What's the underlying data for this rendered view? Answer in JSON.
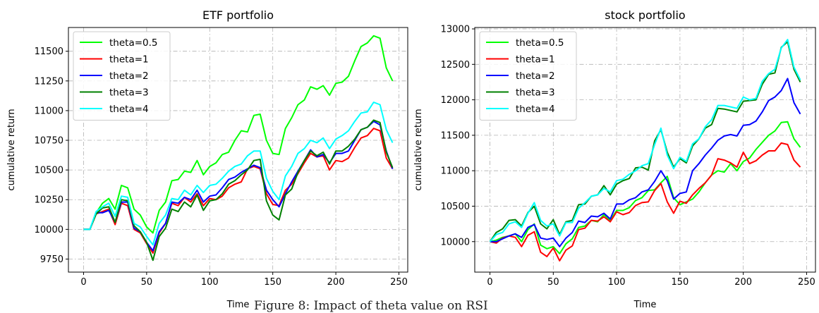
{
  "caption": "Figure 8: Impact of theta value on RSI",
  "chart_data": [
    {
      "type": "line",
      "title": "ETF portfolio",
      "xlabel": "Time",
      "ylabel": "cumulative return",
      "xlim": [
        -12,
        257
      ],
      "ylim": [
        9640,
        11700
      ],
      "xticks": [
        0,
        50,
        100,
        150,
        200,
        250
      ],
      "yticks": [
        9750,
        10000,
        10250,
        10500,
        10750,
        11000,
        11250,
        11500
      ],
      "grid": true,
      "legend_position": "top-left",
      "x": [
        0,
        5,
        10,
        15,
        20,
        25,
        30,
        35,
        40,
        45,
        50,
        55,
        60,
        65,
        70,
        75,
        80,
        85,
        90,
        95,
        100,
        105,
        110,
        115,
        120,
        125,
        130,
        135,
        140,
        145,
        150,
        155,
        160,
        165,
        170,
        175,
        180,
        185,
        190,
        195,
        200,
        205,
        210,
        215,
        220,
        225,
        230,
        235,
        240,
        245
      ],
      "series": [
        {
          "name": "theta=0.5",
          "color": "#00ff00",
          "values": [
            10000,
            10000,
            10140,
            10220,
            10260,
            10170,
            10370,
            10350,
            10170,
            10120,
            10020,
            9970,
            10160,
            10230,
            10410,
            10420,
            10490,
            10480,
            10580,
            10460,
            10530,
            10560,
            10630,
            10650,
            10750,
            10830,
            10820,
            10960,
            10970,
            10750,
            10640,
            10630,
            10850,
            10940,
            11050,
            11090,
            11200,
            11180,
            11210,
            11130,
            11230,
            11240,
            11290,
            11420,
            11540,
            11570,
            11630,
            11610,
            11360,
            11250
          ]
        },
        {
          "name": "theta=1",
          "color": "#ff0000",
          "values": [
            10000,
            10000,
            10130,
            10150,
            10170,
            10040,
            10220,
            10200,
            10000,
            9970,
            9880,
            9800,
            9970,
            10050,
            10220,
            10200,
            10270,
            10230,
            10300,
            10200,
            10260,
            10250,
            10280,
            10350,
            10380,
            10400,
            10510,
            10530,
            10510,
            10300,
            10210,
            10200,
            10330,
            10380,
            10470,
            10560,
            10640,
            10610,
            10620,
            10500,
            10580,
            10570,
            10600,
            10690,
            10770,
            10790,
            10850,
            10830,
            10600,
            10510
          ]
        },
        {
          "name": "theta=2",
          "color": "#0000ff",
          "values": [
            10000,
            10000,
            10140,
            10140,
            10160,
            10060,
            10230,
            10230,
            10010,
            9980,
            9890,
            9820,
            9980,
            10050,
            10230,
            10220,
            10270,
            10250,
            10330,
            10230,
            10280,
            10290,
            10350,
            10420,
            10440,
            10480,
            10510,
            10540,
            10520,
            10330,
            10250,
            10190,
            10300,
            10400,
            10490,
            10580,
            10670,
            10610,
            10630,
            10560,
            10640,
            10640,
            10660,
            10750,
            10840,
            10860,
            10910,
            10880,
            10660,
            10510
          ]
        },
        {
          "name": "theta=3",
          "color": "#008000",
          "values": [
            10000,
            10000,
            10130,
            10180,
            10190,
            10060,
            10250,
            10240,
            10030,
            9980,
            9890,
            9740,
            9940,
            10010,
            10170,
            10150,
            10230,
            10190,
            10290,
            10160,
            10240,
            10250,
            10300,
            10380,
            10410,
            10460,
            10500,
            10580,
            10590,
            10240,
            10120,
            10080,
            10290,
            10340,
            10480,
            10580,
            10660,
            10620,
            10650,
            10550,
            10660,
            10660,
            10700,
            10760,
            10840,
            10860,
            10920,
            10900,
            10650,
            10520
          ]
        },
        {
          "name": "theta=4",
          "color": "#00ffff",
          "values": [
            10000,
            10000,
            10150,
            10190,
            10220,
            10110,
            10280,
            10270,
            10050,
            10020,
            9940,
            9870,
            10050,
            10120,
            10260,
            10250,
            10330,
            10290,
            10370,
            10310,
            10370,
            10380,
            10430,
            10490,
            10530,
            10550,
            10620,
            10660,
            10660,
            10430,
            10320,
            10250,
            10450,
            10530,
            10640,
            10680,
            10750,
            10730,
            10770,
            10680,
            10760,
            10790,
            10830,
            10910,
            10980,
            10990,
            11070,
            11050,
            10840,
            10730
          ]
        }
      ]
    },
    {
      "type": "line",
      "title": "stock portfolio",
      "xlabel": "Time",
      "ylabel": "cumulative return",
      "xlim": [
        -12,
        257
      ],
      "ylim": [
        9570,
        13020
      ],
      "xticks": [
        0,
        50,
        100,
        150,
        200,
        250
      ],
      "yticks": [
        10000,
        10500,
        11000,
        11500,
        12000,
        12500,
        13000
      ],
      "grid": true,
      "legend_position": "top-left",
      "x": [
        0,
        5,
        10,
        15,
        20,
        25,
        30,
        35,
        40,
        45,
        50,
        55,
        60,
        65,
        70,
        75,
        80,
        85,
        90,
        95,
        100,
        105,
        110,
        115,
        120,
        125,
        130,
        135,
        140,
        145,
        150,
        155,
        160,
        165,
        170,
        175,
        180,
        185,
        190,
        195,
        200,
        205,
        210,
        215,
        220,
        225,
        230,
        235,
        240,
        245
      ],
      "series": [
        {
          "name": "theta=0.5",
          "color": "#00ff00",
          "values": [
            10000,
            10020,
            10060,
            10080,
            10110,
            10000,
            10170,
            10250,
            9950,
            9900,
            9930,
            9830,
            9970,
            10040,
            10200,
            10220,
            10300,
            10280,
            10380,
            10300,
            10440,
            10440,
            10480,
            10580,
            10620,
            10720,
            10730,
            10830,
            10920,
            10620,
            10520,
            10560,
            10600,
            10700,
            10830,
            10940,
            11000,
            10980,
            11100,
            11000,
            11130,
            11180,
            11300,
            11400,
            11500,
            11560,
            11680,
            11690,
            11450,
            11330
          ]
        },
        {
          "name": "theta=1",
          "color": "#ff0000",
          "values": [
            10000,
            9980,
            10050,
            10080,
            10060,
            9930,
            10090,
            10140,
            9850,
            9790,
            9910,
            9730,
            9880,
            9940,
            10170,
            10190,
            10300,
            10290,
            10350,
            10280,
            10420,
            10380,
            10410,
            10510,
            10550,
            10560,
            10720,
            10820,
            10560,
            10400,
            10570,
            10540,
            10660,
            10750,
            10830,
            10940,
            11170,
            11150,
            11110,
            11050,
            11260,
            11100,
            11140,
            11220,
            11280,
            11280,
            11390,
            11370,
            11150,
            11050
          ]
        },
        {
          "name": "theta=2",
          "color": "#0000ff",
          "values": [
            10000,
            10000,
            10040,
            10080,
            10110,
            10060,
            10200,
            10240,
            10050,
            10030,
            10050,
            9930,
            10050,
            10130,
            10290,
            10270,
            10360,
            10350,
            10400,
            10320,
            10530,
            10530,
            10590,
            10620,
            10700,
            10730,
            10850,
            11000,
            10860,
            10600,
            10680,
            10700,
            11000,
            11100,
            11220,
            11320,
            11430,
            11490,
            11510,
            11490,
            11640,
            11650,
            11700,
            11830,
            11990,
            12040,
            12130,
            12300,
            11960,
            11800
          ]
        },
        {
          "name": "theta=3",
          "color": "#008000",
          "values": [
            10000,
            10130,
            10180,
            10300,
            10310,
            10220,
            10410,
            10500,
            10250,
            10180,
            10310,
            10100,
            10280,
            10300,
            10520,
            10530,
            10640,
            10660,
            10790,
            10660,
            10810,
            10860,
            10890,
            11040,
            11050,
            11010,
            11420,
            11580,
            11260,
            11050,
            11170,
            11110,
            11350,
            11450,
            11600,
            11650,
            11880,
            11870,
            11850,
            11830,
            11980,
            11990,
            12000,
            12220,
            12360,
            12380,
            12740,
            12820,
            12430,
            12250
          ]
        },
        {
          "name": "theta=4",
          "color": "#00ffff",
          "values": [
            10000,
            10100,
            10130,
            10250,
            10280,
            10200,
            10400,
            10550,
            10300,
            10220,
            10250,
            10080,
            10270,
            10270,
            10470,
            10550,
            10640,
            10660,
            10750,
            10700,
            10860,
            10880,
            10950,
            11000,
            11070,
            11100,
            11370,
            11600,
            11220,
            11030,
            11190,
            11130,
            11380,
            11450,
            11620,
            11720,
            11920,
            11920,
            11900,
            11880,
            12040,
            12000,
            12020,
            12260,
            12370,
            12430,
            12730,
            12850,
            12460,
            12280
          ]
        }
      ]
    }
  ]
}
